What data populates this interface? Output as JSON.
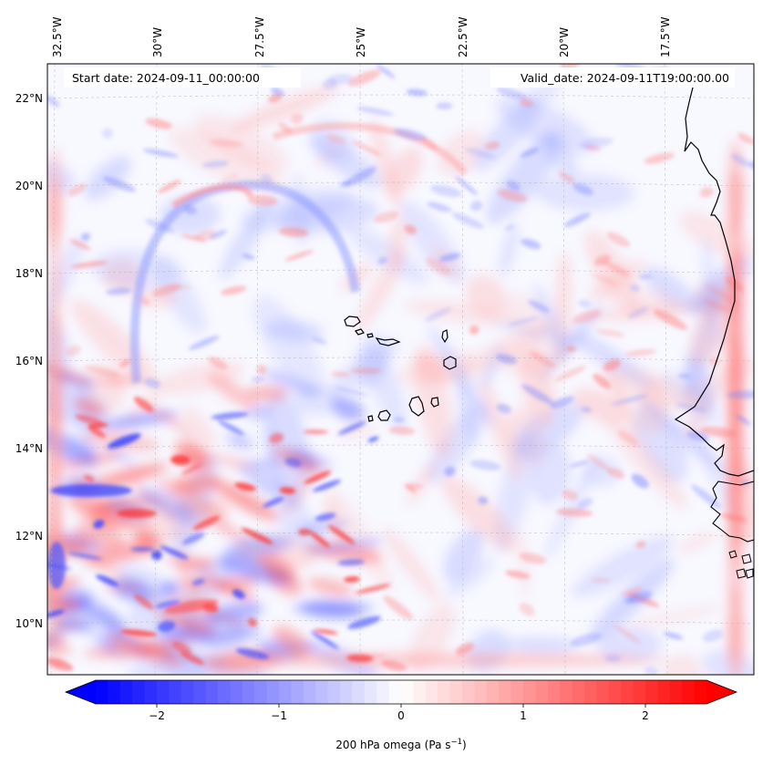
{
  "map": {
    "start_label": "Start date: 2024-09-11_00:00:00",
    "valid_label": "Valid_date: 2024-09-11T19:00:00.00",
    "lon_ticks": [
      "32.5°W",
      "30°W",
      "27.5°W",
      "25°W",
      "22.5°W",
      "20°W",
      "17.5°W"
    ],
    "lat_ticks": [
      "22°N",
      "20°N",
      "18°N",
      "16°N",
      "14°N",
      "12°N",
      "10°N"
    ],
    "lon_range": [
      -33.0,
      -15.5
    ],
    "lat_range": [
      8.8,
      22.8
    ],
    "features": [
      "Cape Verde islands",
      "West African coastline"
    ],
    "colors": {
      "negative": "#0000ff",
      "zero": "#ffffff",
      "positive": "#ff0000",
      "coastline": "#000000"
    }
  },
  "colorbar": {
    "label_prefix": "200 hPa omega (Pa s",
    "label_exp": "−1",
    "label_suffix": ")",
    "ticks": [
      "−2",
      "−1",
      "0",
      "1",
      "2"
    ],
    "tick_values": [
      -2,
      -1,
      0,
      1,
      2
    ],
    "range": [
      -2.5,
      2.5
    ],
    "extend": "both",
    "cmap": "bwr"
  }
}
